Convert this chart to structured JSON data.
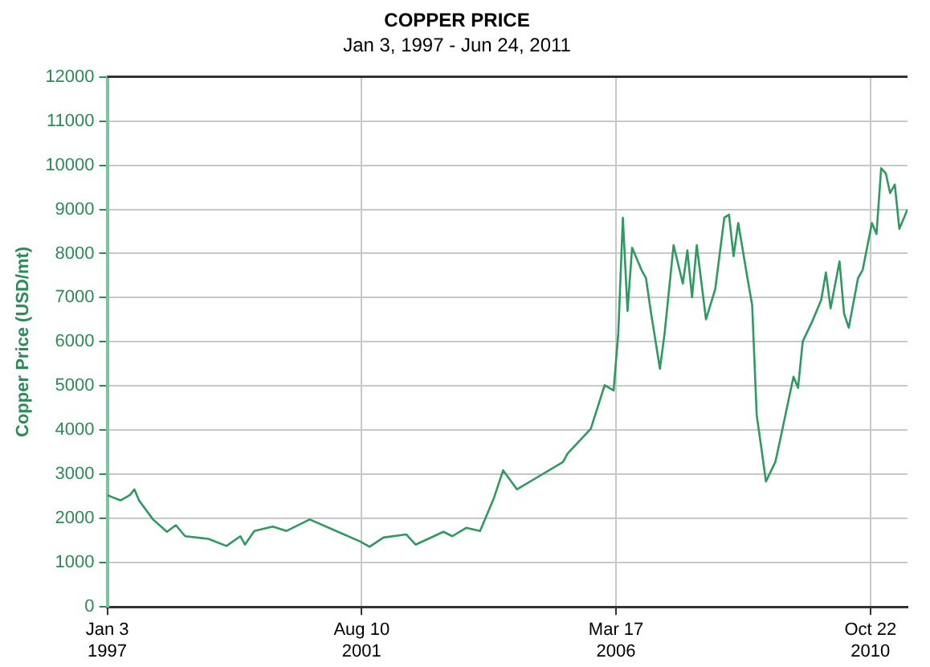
{
  "chart_data": {
    "type": "line",
    "title": "COPPER PRICE",
    "subtitle": "Jan 3, 1997 - Jun 24, 2011",
    "ylabel": "Copper Price (USD/mt)",
    "xlim": [
      "1997-01-03",
      "2011-06-24"
    ],
    "xticks": [
      {
        "value": "1997-01-03",
        "label": "Jan 3\n1997"
      },
      {
        "value": "2001-08-10",
        "label": "Aug 10\n2001"
      },
      {
        "value": "2006-03-17",
        "label": "Mar 17\n2006"
      },
      {
        "value": "2010-10-22",
        "label": "Oct 22\n2010"
      }
    ],
    "ylim": [
      0,
      12000
    ],
    "yticks": [
      0,
      1000,
      2000,
      3000,
      4000,
      5000,
      6000,
      7000,
      8000,
      9000,
      10000,
      11000,
      12000
    ],
    "grid": true,
    "legend": false,
    "marker": "none",
    "line_style": "solid",
    "x": [
      "1997-01-03",
      "1997-04",
      "1997-06",
      "1997-07",
      "1997-08",
      "1997-11",
      "1998-02",
      "1998-04",
      "1998-06",
      "1998-11",
      "1999-03",
      "1999-06",
      "1999-07",
      "1999-09",
      "2000-01",
      "2000-04",
      "2000-09",
      "2001-02",
      "2001-08",
      "2001-10",
      "2002-01",
      "2002-06",
      "2002-08",
      "2003-02",
      "2003-04",
      "2003-07",
      "2003-10",
      "2004-01",
      "2004-03",
      "2004-06",
      "2004-10",
      "2005-04",
      "2005-05",
      "2005-10",
      "2006-01",
      "2006-03",
      "2006-04",
      "2006-05",
      "2006-06",
      "2006-07",
      "2006-09",
      "2006-10",
      "2006-11",
      "2007-01",
      "2007-02",
      "2007-04",
      "2007-06",
      "2007-07",
      "2007-08",
      "2007-09",
      "2007-11",
      "2008-01",
      "2008-03",
      "2008-04",
      "2008-05",
      "2008-06",
      "2008-08",
      "2008-09",
      "2008-10",
      "2008-11",
      "2008-12",
      "2009-02",
      "2009-03",
      "2009-05",
      "2009-06",
      "2009-07",
      "2009-08",
      "2009-10",
      "2009-12",
      "2010-01",
      "2010-02",
      "2010-04",
      "2010-05",
      "2010-06",
      "2010-08",
      "2010-09",
      "2010-11",
      "2010-12",
      "2011-01",
      "2011-02",
      "2011-03",
      "2011-04",
      "2011-05",
      "2011-06-24"
    ],
    "series": [
      {
        "color": "#2e9960",
        "values": [
          2530,
          2410,
          2530,
          2660,
          2410,
          1980,
          1700,
          1850,
          1600,
          1540,
          1380,
          1600,
          1410,
          1720,
          1820,
          1720,
          1980,
          1750,
          1480,
          1360,
          1570,
          1640,
          1410,
          1700,
          1600,
          1790,
          1720,
          2470,
          3090,
          2660,
          2910,
          3280,
          3470,
          4030,
          5020,
          4900,
          6200,
          8810,
          6700,
          8130,
          7630,
          7440,
          6700,
          5390,
          6200,
          8190,
          7320,
          8070,
          7010,
          8190,
          6510,
          7190,
          8810,
          8880,
          7940,
          8690,
          7440,
          6830,
          4340,
          3590,
          2840,
          3280,
          3720,
          4710,
          5210,
          4960,
          6010,
          6450,
          6950,
          7570,
          6760,
          7820,
          6640,
          6320,
          7440,
          7630,
          8690,
          8440,
          9930,
          9810,
          9370,
          9560,
          8560,
          9000
        ]
      }
    ]
  }
}
